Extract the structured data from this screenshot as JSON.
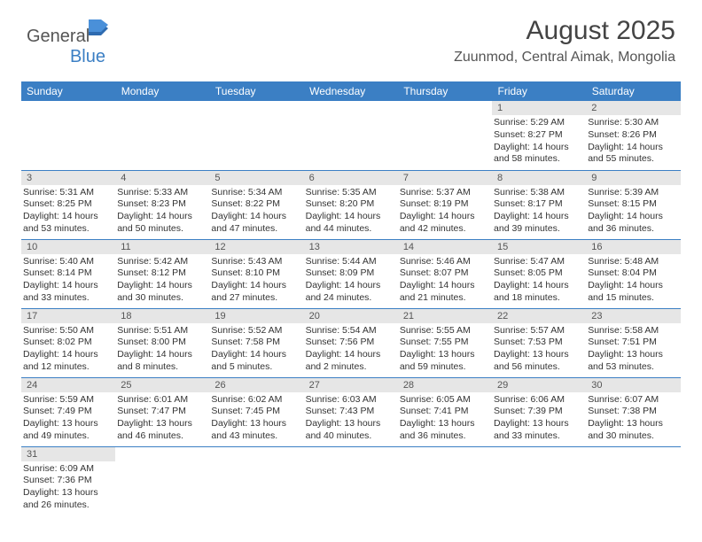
{
  "logo": {
    "text1": "General",
    "text2": "Blue"
  },
  "title": "August 2025",
  "subtitle": "Zuunmod, Central Aimak, Mongolia",
  "colors": {
    "header_bg": "#3b7fc4",
    "header_text": "#ffffff",
    "daynum_bg": "#e6e6e6",
    "border": "#3b7fc4",
    "body_text": "#333333"
  },
  "day_labels": [
    "Sunday",
    "Monday",
    "Tuesday",
    "Wednesday",
    "Thursday",
    "Friday",
    "Saturday"
  ],
  "weeks": [
    [
      null,
      null,
      null,
      null,
      null,
      {
        "n": "1",
        "sr": "Sunrise: 5:29 AM",
        "ss": "Sunset: 8:27 PM",
        "dl": "Daylight: 14 hours and 58 minutes."
      },
      {
        "n": "2",
        "sr": "Sunrise: 5:30 AM",
        "ss": "Sunset: 8:26 PM",
        "dl": "Daylight: 14 hours and 55 minutes."
      }
    ],
    [
      {
        "n": "3",
        "sr": "Sunrise: 5:31 AM",
        "ss": "Sunset: 8:25 PM",
        "dl": "Daylight: 14 hours and 53 minutes."
      },
      {
        "n": "4",
        "sr": "Sunrise: 5:33 AM",
        "ss": "Sunset: 8:23 PM",
        "dl": "Daylight: 14 hours and 50 minutes."
      },
      {
        "n": "5",
        "sr": "Sunrise: 5:34 AM",
        "ss": "Sunset: 8:22 PM",
        "dl": "Daylight: 14 hours and 47 minutes."
      },
      {
        "n": "6",
        "sr": "Sunrise: 5:35 AM",
        "ss": "Sunset: 8:20 PM",
        "dl": "Daylight: 14 hours and 44 minutes."
      },
      {
        "n": "7",
        "sr": "Sunrise: 5:37 AM",
        "ss": "Sunset: 8:19 PM",
        "dl": "Daylight: 14 hours and 42 minutes."
      },
      {
        "n": "8",
        "sr": "Sunrise: 5:38 AM",
        "ss": "Sunset: 8:17 PM",
        "dl": "Daylight: 14 hours and 39 minutes."
      },
      {
        "n": "9",
        "sr": "Sunrise: 5:39 AM",
        "ss": "Sunset: 8:15 PM",
        "dl": "Daylight: 14 hours and 36 minutes."
      }
    ],
    [
      {
        "n": "10",
        "sr": "Sunrise: 5:40 AM",
        "ss": "Sunset: 8:14 PM",
        "dl": "Daylight: 14 hours and 33 minutes."
      },
      {
        "n": "11",
        "sr": "Sunrise: 5:42 AM",
        "ss": "Sunset: 8:12 PM",
        "dl": "Daylight: 14 hours and 30 minutes."
      },
      {
        "n": "12",
        "sr": "Sunrise: 5:43 AM",
        "ss": "Sunset: 8:10 PM",
        "dl": "Daylight: 14 hours and 27 minutes."
      },
      {
        "n": "13",
        "sr": "Sunrise: 5:44 AM",
        "ss": "Sunset: 8:09 PM",
        "dl": "Daylight: 14 hours and 24 minutes."
      },
      {
        "n": "14",
        "sr": "Sunrise: 5:46 AM",
        "ss": "Sunset: 8:07 PM",
        "dl": "Daylight: 14 hours and 21 minutes."
      },
      {
        "n": "15",
        "sr": "Sunrise: 5:47 AM",
        "ss": "Sunset: 8:05 PM",
        "dl": "Daylight: 14 hours and 18 minutes."
      },
      {
        "n": "16",
        "sr": "Sunrise: 5:48 AM",
        "ss": "Sunset: 8:04 PM",
        "dl": "Daylight: 14 hours and 15 minutes."
      }
    ],
    [
      {
        "n": "17",
        "sr": "Sunrise: 5:50 AM",
        "ss": "Sunset: 8:02 PM",
        "dl": "Daylight: 14 hours and 12 minutes."
      },
      {
        "n": "18",
        "sr": "Sunrise: 5:51 AM",
        "ss": "Sunset: 8:00 PM",
        "dl": "Daylight: 14 hours and 8 minutes."
      },
      {
        "n": "19",
        "sr": "Sunrise: 5:52 AM",
        "ss": "Sunset: 7:58 PM",
        "dl": "Daylight: 14 hours and 5 minutes."
      },
      {
        "n": "20",
        "sr": "Sunrise: 5:54 AM",
        "ss": "Sunset: 7:56 PM",
        "dl": "Daylight: 14 hours and 2 minutes."
      },
      {
        "n": "21",
        "sr": "Sunrise: 5:55 AM",
        "ss": "Sunset: 7:55 PM",
        "dl": "Daylight: 13 hours and 59 minutes."
      },
      {
        "n": "22",
        "sr": "Sunrise: 5:57 AM",
        "ss": "Sunset: 7:53 PM",
        "dl": "Daylight: 13 hours and 56 minutes."
      },
      {
        "n": "23",
        "sr": "Sunrise: 5:58 AM",
        "ss": "Sunset: 7:51 PM",
        "dl": "Daylight: 13 hours and 53 minutes."
      }
    ],
    [
      {
        "n": "24",
        "sr": "Sunrise: 5:59 AM",
        "ss": "Sunset: 7:49 PM",
        "dl": "Daylight: 13 hours and 49 minutes."
      },
      {
        "n": "25",
        "sr": "Sunrise: 6:01 AM",
        "ss": "Sunset: 7:47 PM",
        "dl": "Daylight: 13 hours and 46 minutes."
      },
      {
        "n": "26",
        "sr": "Sunrise: 6:02 AM",
        "ss": "Sunset: 7:45 PM",
        "dl": "Daylight: 13 hours and 43 minutes."
      },
      {
        "n": "27",
        "sr": "Sunrise: 6:03 AM",
        "ss": "Sunset: 7:43 PM",
        "dl": "Daylight: 13 hours and 40 minutes."
      },
      {
        "n": "28",
        "sr": "Sunrise: 6:05 AM",
        "ss": "Sunset: 7:41 PM",
        "dl": "Daylight: 13 hours and 36 minutes."
      },
      {
        "n": "29",
        "sr": "Sunrise: 6:06 AM",
        "ss": "Sunset: 7:39 PM",
        "dl": "Daylight: 13 hours and 33 minutes."
      },
      {
        "n": "30",
        "sr": "Sunrise: 6:07 AM",
        "ss": "Sunset: 7:38 PM",
        "dl": "Daylight: 13 hours and 30 minutes."
      }
    ],
    [
      {
        "n": "31",
        "sr": "Sunrise: 6:09 AM",
        "ss": "Sunset: 7:36 PM",
        "dl": "Daylight: 13 hours and 26 minutes."
      },
      null,
      null,
      null,
      null,
      null,
      null
    ]
  ]
}
